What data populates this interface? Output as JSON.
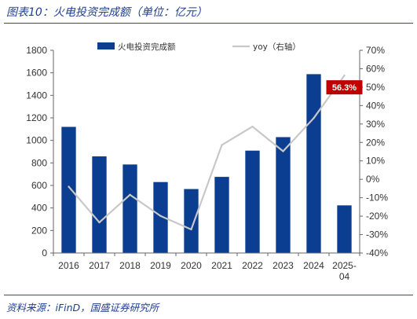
{
  "figure": {
    "title": "图表10：火电投资完成额（单位：亿元）",
    "source": "资料来源：iFinD，国盛证券研究所"
  },
  "chart_data": {
    "type": "bar",
    "categories": [
      "2016",
      "2017",
      "2018",
      "2019",
      "2020",
      "2021",
      "2022",
      "2023",
      "2024",
      "2025-04"
    ],
    "series": [
      {
        "name": "火电投资完成额",
        "type": "bar",
        "axis": "left",
        "color": "#0b3d91",
        "values": [
          1120,
          858,
          786,
          630,
          568,
          676,
          909,
          1029,
          1588,
          423
        ]
      },
      {
        "name": "yoy（右轴）",
        "type": "line",
        "axis": "right",
        "color": "#c8c8c8",
        "values": [
          -4,
          -23.4,
          -8.4,
          -19.9,
          -27.2,
          18.6,
          28.6,
          15.2,
          33.2,
          56.3
        ]
      }
    ],
    "left_axis": {
      "min": 0,
      "max": 1800,
      "step": 200
    },
    "right_axis": {
      "min": -40,
      "max": 70,
      "step": 10,
      "unit": "%"
    },
    "annotation": {
      "text": "56.3%",
      "point_index": 9,
      "color": "#c00000"
    },
    "legend_position": "top",
    "grid": false
  }
}
